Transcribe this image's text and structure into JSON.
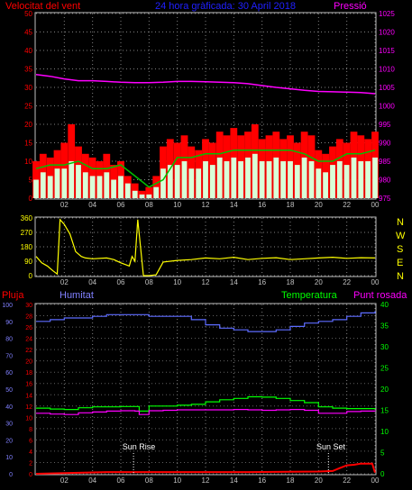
{
  "header": {
    "left_title": "Velocitat del vent",
    "center_title": "24 hora gràficada:  30 April 2018",
    "right_title": "Pressió"
  },
  "lower_header": {
    "rain": "Pluja",
    "humidity": "Humitat",
    "temperature": "Temperatura",
    "dewpoint": "Punt rosada"
  },
  "direction_letters": [
    "N",
    "W",
    "S",
    "E",
    "N"
  ],
  "annotations": {
    "sunrise": "Sun Rise",
    "sunset": "Sun Set"
  },
  "colors": {
    "wind_gust": "#ff0000",
    "wind_avg": "#d8ffd8",
    "wind_trend": "#00c000",
    "pressure": "#ff00ff",
    "direction": "#ffff00",
    "humidity": "#5d6cff",
    "temperature": "#00ff00",
    "dewpoint": "#ff00ff",
    "rain": "#ff0000",
    "title_blue": "#2020ff",
    "axis_red": "#ff0000",
    "axis_magenta": "#ff00ff",
    "axis_yellow": "#ffff00",
    "axis_green": "#00ff00",
    "axis_blue": "#8080ff"
  },
  "chart_data": [
    {
      "type": "line",
      "name": "wind-and-pressure",
      "x_ticks": [
        "02",
        "04",
        "06",
        "08",
        "10",
        "12",
        "14",
        "16",
        "18",
        "20",
        "22",
        "00"
      ],
      "left_axis": {
        "range": [
          0,
          50
        ],
        "ticks": [
          0,
          5,
          10,
          15,
          20,
          25,
          30,
          35,
          40,
          45,
          50
        ]
      },
      "right_axis": {
        "range": [
          975,
          1025
        ],
        "ticks": [
          975,
          980,
          985,
          990,
          995,
          1000,
          1005,
          1010,
          1015,
          1020,
          1025
        ]
      },
      "grid": true,
      "series": [
        {
          "key": "pressure",
          "x": [
            0,
            1,
            2,
            3,
            4,
            5,
            6,
            7,
            8,
            9,
            10,
            11,
            12,
            13,
            14,
            15,
            16,
            17,
            18,
            19,
            20,
            21,
            22,
            23,
            24
          ],
          "values": [
            1008.5,
            1008,
            1007.3,
            1006.8,
            1006.8,
            1006.6,
            1006.4,
            1006.3,
            1006.3,
            1006.4,
            1006.6,
            1006.6,
            1006.5,
            1006.4,
            1006.3,
            1006,
            1005.5,
            1005,
            1004.6,
            1004.2,
            1003.9,
            1003.8,
            1003.7,
            1003.6,
            1003.3
          ]
        },
        {
          "key": "gust",
          "x": [
            0,
            0.5,
            1,
            1.5,
            2,
            2.5,
            3,
            3.5,
            4,
            4.5,
            5,
            5.5,
            6,
            6.5,
            7,
            7.5,
            8,
            8.5,
            9,
            9.5,
            10,
            10.5,
            11,
            11.5,
            12,
            12.5,
            13,
            13.5,
            14,
            14.5,
            15,
            15.5,
            16,
            16.5,
            17,
            17.5,
            18,
            18.5,
            19,
            19.5,
            20,
            20.5,
            21,
            21.5,
            22,
            22.5,
            23,
            23.5,
            24
          ],
          "values": [
            10,
            12,
            11,
            13,
            15,
            20,
            14,
            12,
            11,
            10,
            12,
            9,
            10,
            6,
            4,
            2,
            3,
            6,
            14,
            16,
            15,
            17,
            14,
            13,
            16,
            15,
            18,
            17,
            19,
            17,
            18,
            20,
            16,
            17,
            18,
            16,
            17,
            15,
            18,
            17,
            13,
            12,
            14,
            16,
            15,
            18,
            17,
            16,
            18
          ]
        },
        {
          "key": "average",
          "x": [
            0,
            0.5,
            1,
            1.5,
            2,
            2.5,
            3,
            3.5,
            4,
            4.5,
            5,
            5.5,
            6,
            6.5,
            7,
            7.5,
            8,
            8.5,
            9,
            9.5,
            10,
            10.5,
            11,
            11.5,
            12,
            12.5,
            13,
            13.5,
            14,
            14.5,
            15,
            15.5,
            16,
            16.5,
            17,
            17.5,
            18,
            18.5,
            19,
            19.5,
            20,
            20.5,
            21,
            21.5,
            22,
            22.5,
            23,
            23.5,
            24
          ],
          "values": [
            5,
            7,
            6,
            8,
            8,
            10,
            9,
            7,
            6,
            6,
            7,
            5,
            6,
            4,
            2,
            1,
            1,
            3,
            8,
            9,
            9,
            10,
            8,
            8,
            10,
            9,
            11,
            10,
            11,
            10,
            11,
            12,
            10,
            10,
            11,
            10,
            10,
            9,
            11,
            10,
            8,
            7,
            9,
            10,
            9,
            11,
            10,
            10,
            11
          ]
        },
        {
          "key": "trend",
          "x": [
            0,
            1,
            2,
            3,
            4,
            5,
            6,
            7,
            8,
            9,
            10,
            11,
            12,
            13,
            14,
            15,
            16,
            17,
            18,
            19,
            20,
            21,
            22,
            23,
            24
          ],
          "values": [
            8,
            9,
            9,
            10,
            8,
            8,
            9,
            6,
            3,
            5,
            11,
            11,
            12,
            12,
            13,
            13,
            13,
            13,
            13,
            12,
            10,
            10,
            12,
            12,
            13
          ]
        }
      ]
    },
    {
      "type": "line",
      "name": "wind-direction",
      "x_ticks": [
        "02",
        "04",
        "06",
        "08",
        "10",
        "12",
        "14",
        "16",
        "18",
        "20",
        "22",
        "00"
      ],
      "left_axis": {
        "range": [
          0,
          360
        ],
        "ticks": [
          0,
          90,
          180,
          270,
          360
        ]
      },
      "grid": true,
      "series": [
        {
          "key": "direction",
          "x": [
            0,
            0.4,
            0.8,
            1.2,
            1.5,
            1.7,
            2,
            2.4,
            2.8,
            3.2,
            3.5,
            4,
            5,
            5.5,
            6,
            6.6,
            6.8,
            7,
            7.2,
            7.6,
            8,
            8.5,
            9,
            10,
            11,
            12,
            13,
            14,
            15,
            16,
            17,
            18,
            19,
            20,
            21,
            22,
            23,
            24
          ],
          "values": [
            120,
            80,
            60,
            30,
            10,
            350,
            320,
            260,
            150,
            120,
            110,
            105,
            110,
            100,
            80,
            60,
            120,
            90,
            350,
            0,
            0,
            5,
            85,
            95,
            100,
            110,
            105,
            115,
            100,
            108,
            112,
            100,
            105,
            110,
            115,
            108,
            112,
            110
          ]
        }
      ]
    },
    {
      "type": "line",
      "name": "rain-humidity-temperature-dewpoint",
      "x_ticks": [
        "02",
        "04",
        "06",
        "08",
        "10",
        "12",
        "14",
        "16",
        "18",
        "20",
        "22",
        "00"
      ],
      "rain_axis": {
        "range": [
          0,
          30
        ],
        "ticks": [
          0,
          2,
          4,
          6,
          8,
          10,
          12,
          14,
          16,
          18,
          20,
          22,
          24,
          26,
          28,
          30
        ]
      },
      "humidity_axis": {
        "range": [
          0,
          100
        ],
        "ticks": [
          0,
          10,
          20,
          30,
          40,
          50,
          60,
          70,
          80,
          90,
          100
        ]
      },
      "temp_axis": {
        "range": [
          0,
          40
        ],
        "ticks": [
          0,
          5,
          10,
          15,
          20,
          25,
          30,
          35,
          40
        ]
      },
      "grid": true,
      "series": [
        {
          "key": "humidity",
          "x": [
            0,
            1,
            2,
            3,
            4,
            5,
            6,
            7,
            8,
            9,
            10,
            11,
            12,
            13,
            14,
            15,
            16,
            17,
            18,
            19,
            20,
            21,
            22,
            23,
            24
          ],
          "values": [
            90,
            91,
            92,
            92,
            93,
            94,
            94,
            94,
            93,
            93,
            93,
            91,
            88,
            86,
            85,
            84,
            84,
            85,
            87,
            89,
            90,
            91,
            93,
            95,
            96
          ]
        },
        {
          "key": "temperature",
          "x": [
            0,
            1,
            2,
            3,
            4,
            5,
            6,
            7,
            7.3,
            8,
            9,
            10,
            11,
            12,
            13,
            14,
            15,
            16,
            17,
            18,
            19,
            20,
            21,
            22,
            23,
            24
          ],
          "values": [
            15.5,
            15.3,
            15.2,
            15.6,
            15.8,
            15.8,
            15.9,
            15.9,
            14.8,
            16,
            16,
            16.2,
            16.4,
            17,
            17.5,
            17.8,
            18.2,
            18.1,
            17.8,
            17.3,
            16.8,
            15.8,
            15.5,
            15.4,
            15.4,
            15.3
          ]
        },
        {
          "key": "dewpoint",
          "x": [
            0,
            1,
            2,
            3,
            4,
            5,
            6,
            7,
            7.3,
            8,
            9,
            10,
            11,
            12,
            13,
            14,
            15,
            16,
            17,
            18,
            19,
            20,
            21,
            22,
            23,
            24
          ],
          "values": [
            14.3,
            14.1,
            14,
            14.4,
            14.6,
            14.8,
            14.9,
            14.8,
            14,
            14.9,
            15,
            15.1,
            15.1,
            15.1,
            15.1,
            15.2,
            15.1,
            15,
            15.1,
            15.2,
            15,
            14.3,
            14.3,
            14.7,
            14.8,
            14.7
          ]
        },
        {
          "key": "rain",
          "x": [
            0,
            5,
            10,
            15,
            20,
            21,
            21.5,
            22,
            22.5,
            23,
            23.5,
            23.8,
            24
          ],
          "values": [
            0,
            0.3,
            0.3,
            0.3,
            0.4,
            0.5,
            1,
            1.5,
            1.6,
            1.8,
            1.8,
            1.8,
            0.2
          ]
        }
      ],
      "markers": [
        {
          "key": "sunrise",
          "x": 6.9
        },
        {
          "key": "sunset",
          "x": 20.7
        }
      ]
    }
  ]
}
